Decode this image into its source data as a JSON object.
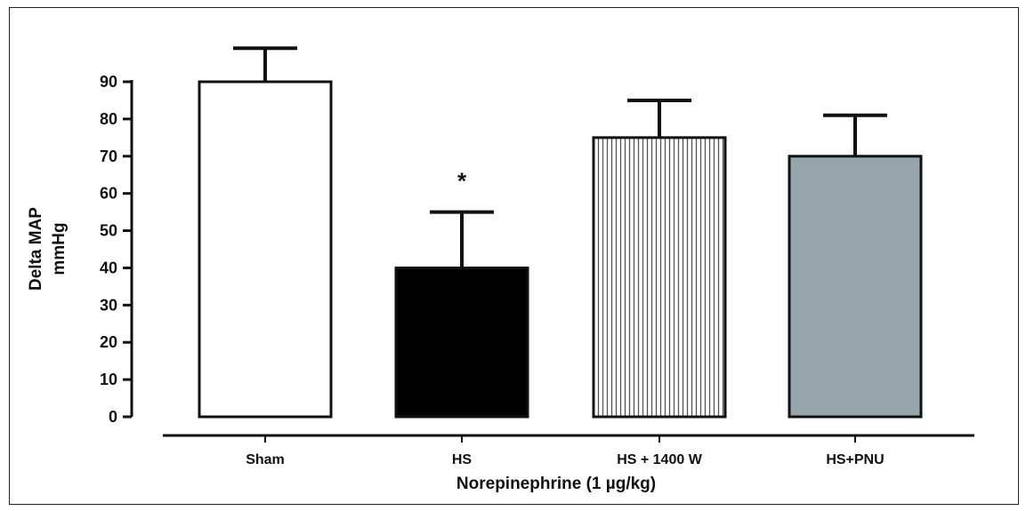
{
  "chart_data": {
    "type": "bar",
    "categories": [
      "Sham",
      "HS",
      "HS + 1400 W",
      "HS+PNU"
    ],
    "values": [
      90,
      40,
      75,
      70
    ],
    "error_upper": [
      99,
      55,
      85,
      81
    ],
    "annotations": [
      "",
      "*",
      "",
      ""
    ],
    "bar_styles": [
      {
        "fill": "#ffffff",
        "pattern": "none"
      },
      {
        "fill": "#000000",
        "pattern": "none"
      },
      {
        "fill": "#ffffff",
        "pattern": "vertical-lines"
      },
      {
        "fill": "#95a5ab",
        "pattern": "none"
      }
    ],
    "xlabel": "Norepinephrine (1 µg/kg)",
    "ylabel_lines": [
      "Delta MAP",
      "mmHg"
    ],
    "yticks": [
      0,
      10,
      20,
      30,
      40,
      50,
      60,
      70,
      80,
      90
    ],
    "ylim": [
      0,
      90
    ],
    "grid": false,
    "legend": "none"
  }
}
